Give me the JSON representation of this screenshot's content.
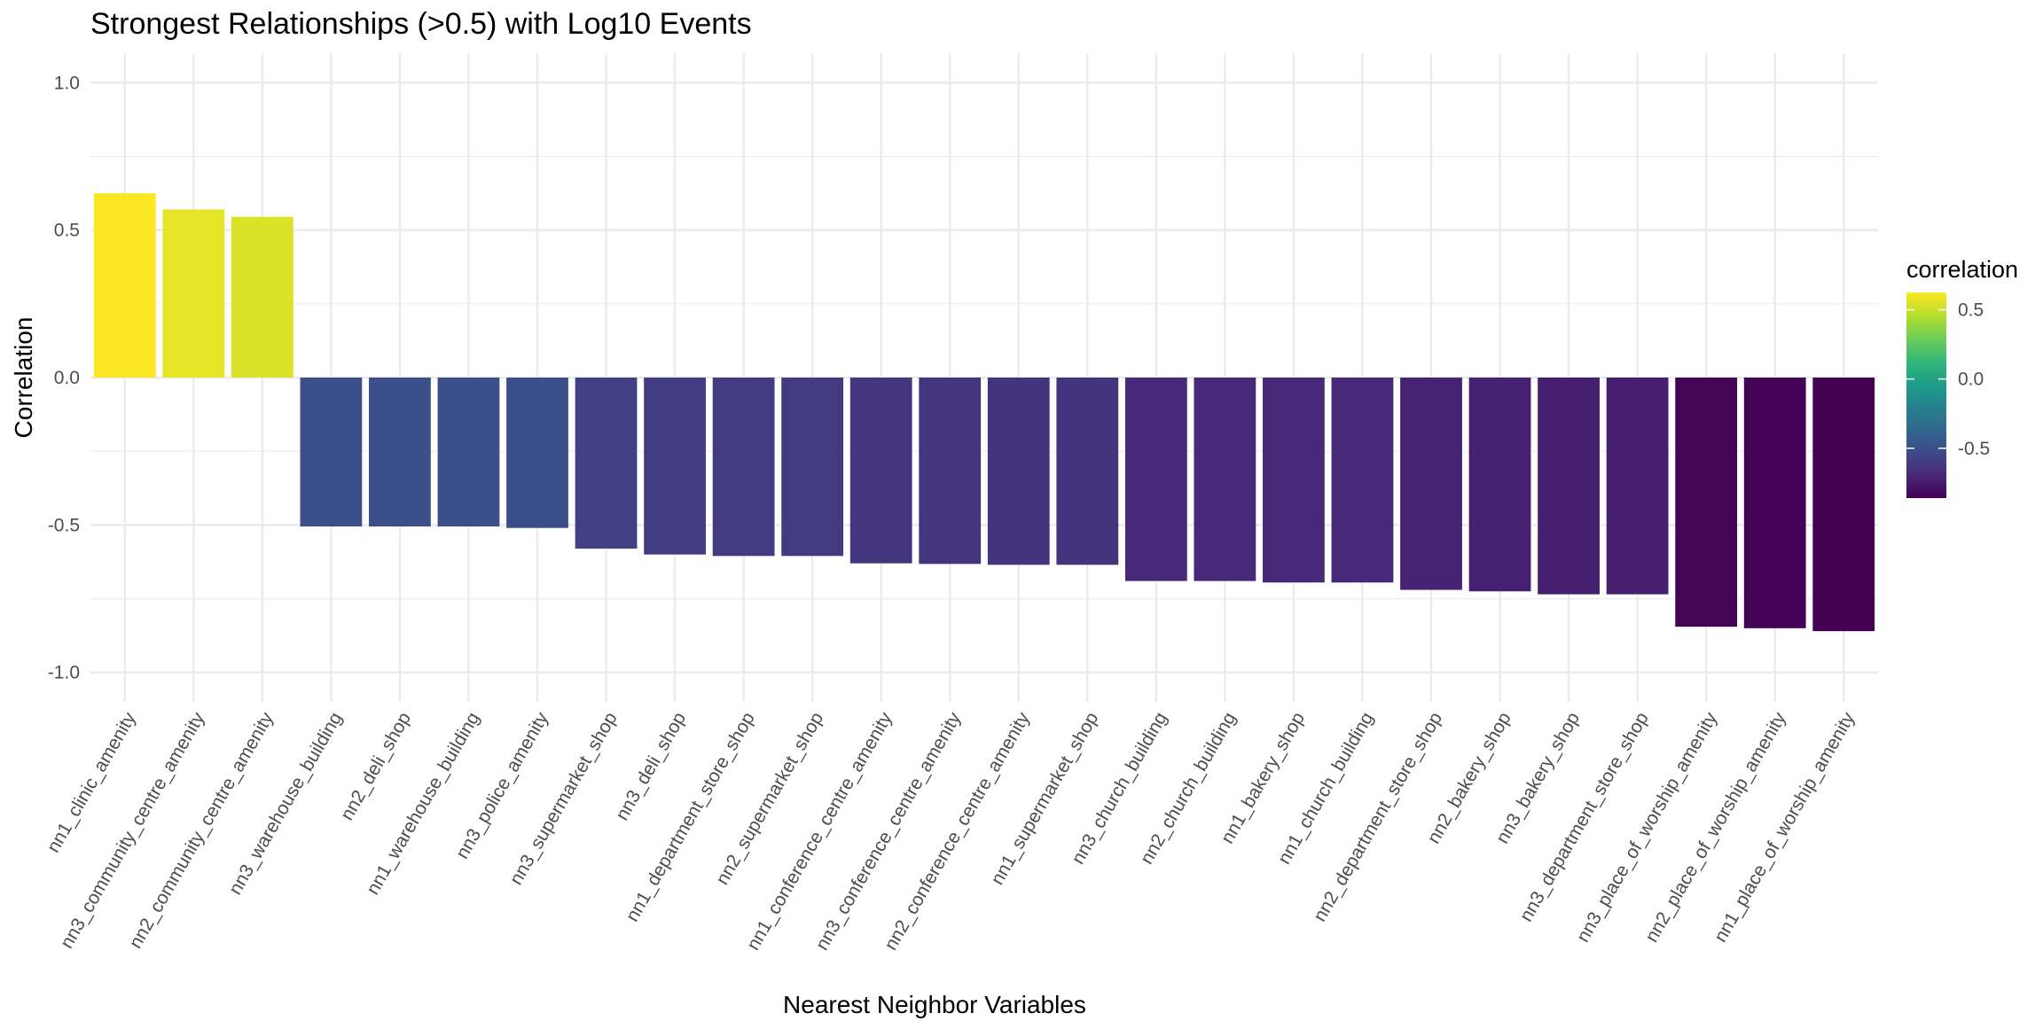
{
  "chart_data": {
    "type": "bar",
    "title": "Strongest Relationships (>0.5) with Log10 Events",
    "xlabel": "Nearest Neighbor Variables",
    "ylabel": "Correlation",
    "ylim": [
      -1.1,
      1.1
    ],
    "yticks": [
      1.0,
      0.5,
      0.0,
      -0.5,
      -1.0
    ],
    "ytick_labels": [
      "1.0",
      "0.5",
      "0.0",
      "-0.5",
      "-1.0"
    ],
    "grid": true,
    "categories": [
      "nn1_clinic_amenity",
      "nn3_community_centre_amenity",
      "nn2_community_centre_amenity",
      "nn3_warehouse_building",
      "nn2_deli_shop",
      "nn1_warehouse_building",
      "nn3_police_amenity",
      "nn3_supermarket_shop",
      "nn3_deli_shop",
      "nn1_department_store_shop",
      "nn2_supermarket_shop",
      "nn1_conference_centre_amenity",
      "nn3_conference_centre_amenity",
      "nn2_conference_centre_amenity",
      "nn1_supermarket_shop",
      "nn3_church_building",
      "nn2_church_building",
      "nn1_bakery_shop",
      "nn1_church_building",
      "nn2_department_store_shop",
      "nn2_bakery_shop",
      "nn3_bakery_shop",
      "nn3_department_store_shop",
      "nn3_place_of_worship_amenity",
      "nn2_place_of_worship_amenity",
      "nn1_place_of_worship_amenity"
    ],
    "values": [
      0.625,
      0.57,
      0.545,
      -0.505,
      -0.505,
      -0.505,
      -0.51,
      -0.58,
      -0.6,
      -0.605,
      -0.605,
      -0.63,
      -0.632,
      -0.635,
      -0.635,
      -0.69,
      -0.69,
      -0.695,
      -0.695,
      -0.72,
      -0.725,
      -0.735,
      -0.735,
      -0.845,
      -0.85,
      -0.86
    ],
    "legend": {
      "title": "correlation",
      "placement": "right",
      "ticks": [
        0.5,
        0.0,
        -0.5
      ],
      "tick_labels": [
        "0.5",
        "0.0",
        "-0.5"
      ],
      "range": [
        -0.86,
        0.625
      ]
    }
  }
}
